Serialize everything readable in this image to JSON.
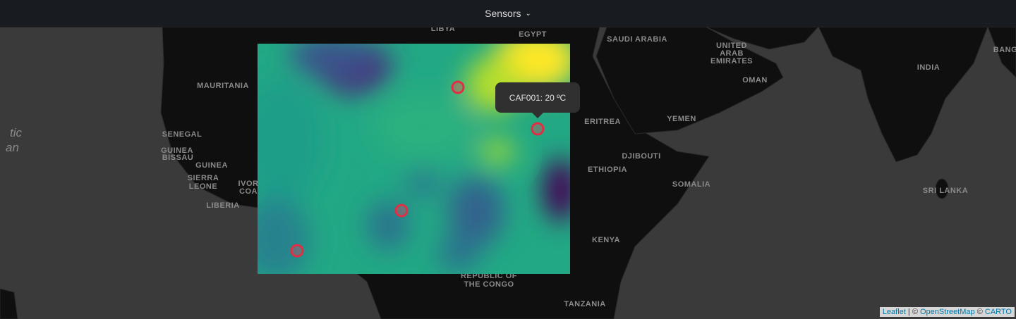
{
  "header": {
    "title": "Sensors"
  },
  "map_labels": [
    "LIBYA",
    "EGYPT",
    "SAUDI ARABIA",
    "UNITED",
    "ARAB",
    "EMIRATES",
    "OMAN",
    "INDIA",
    "BANG",
    "MAURITANIA",
    "SENEGAL",
    "GUINEA",
    "BISSAU",
    "GUINEA",
    "SIERRA",
    "LEONE",
    "IVOR",
    "COA",
    "LIBERIA",
    "ERITREA",
    "DJIBOUTI",
    "YEMEN",
    "ETHIOPIA",
    "SOMALIA",
    "SRI LANKA",
    "KENYA",
    "REPUBLIC OF",
    "THE CONGO",
    "TANZANIA",
    "tic",
    "an"
  ],
  "tooltip": "CAF001: 20 ºC",
  "attribution": {
    "leaflet": "Leaflet",
    "separator": "| ©",
    "osm": "OpenStreetMap",
    "copyright": "©",
    "carto": "CARTO"
  }
}
